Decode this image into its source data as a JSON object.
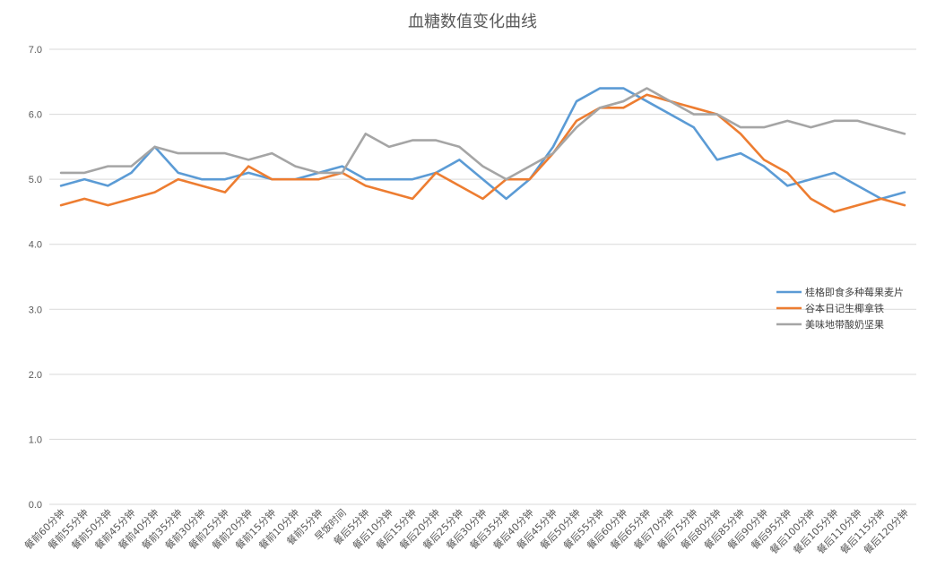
{
  "chart_data": {
    "type": "line",
    "title": "血糖数值变化曲线",
    "xlabel": "",
    "ylabel": "",
    "ylim": [
      0,
      7
    ],
    "yticks": [
      "0.0",
      "1.0",
      "2.0",
      "3.0",
      "4.0",
      "5.0",
      "6.0",
      "7.0"
    ],
    "grid": true,
    "legend_position": "right",
    "categories": [
      "餐前60分钟",
      "餐前55分钟",
      "餐前50分钟",
      "餐前45分钟",
      "餐前40分钟",
      "餐前35分钟",
      "餐前30分钟",
      "餐前25分钟",
      "餐前20分钟",
      "餐前15分钟",
      "餐前10分钟",
      "餐前5分钟",
      "早饭时间",
      "餐后5分钟",
      "餐后10分钟",
      "餐后15分钟",
      "餐后20分钟",
      "餐后25分钟",
      "餐后30分钟",
      "餐后35分钟",
      "餐后40分钟",
      "餐后45分钟",
      "餐后50分钟",
      "餐后55分钟",
      "餐后60分钟",
      "餐后65分钟",
      "餐后70分钟",
      "餐后75分钟",
      "餐后80分钟",
      "餐后85分钟",
      "餐后90分钟",
      "餐后95分钟",
      "餐后100分钟",
      "餐后105分钟",
      "餐后110分钟",
      "餐后115分钟",
      "餐后120分钟"
    ],
    "series": [
      {
        "name": "桂格即食多种莓果麦片",
        "color": "#5b9bd5",
        "values": [
          4.9,
          5.0,
          4.9,
          5.1,
          5.5,
          5.1,
          5.0,
          5.0,
          5.1,
          5.0,
          5.0,
          5.1,
          5.2,
          5.0,
          5.0,
          5.0,
          5.1,
          5.3,
          5.0,
          4.7,
          5.0,
          5.5,
          6.2,
          6.4,
          6.4,
          6.2,
          6.0,
          5.8,
          5.3,
          5.4,
          5.2,
          4.9,
          5.0,
          5.1,
          4.9,
          4.7,
          4.8
        ]
      },
      {
        "name": "谷本日记生椰拿铁",
        "color": "#ed7d31",
        "values": [
          4.6,
          4.7,
          4.6,
          4.7,
          4.8,
          5.0,
          4.9,
          4.8,
          5.2,
          5.0,
          5.0,
          5.0,
          5.1,
          4.9,
          4.8,
          4.7,
          5.1,
          4.9,
          4.7,
          5.0,
          5.0,
          5.4,
          5.9,
          6.1,
          6.1,
          6.3,
          6.2,
          6.1,
          6.0,
          5.7,
          5.3,
          5.1,
          4.7,
          4.5,
          4.6,
          4.7,
          4.6
        ]
      },
      {
        "name": "美味地带酸奶坚果",
        "color": "#a5a5a5",
        "values": [
          5.1,
          5.1,
          5.2,
          5.2,
          5.5,
          5.4,
          5.4,
          5.4,
          5.3,
          5.4,
          5.2,
          5.1,
          5.1,
          5.7,
          5.5,
          5.6,
          5.6,
          5.5,
          5.2,
          5.0,
          5.2,
          5.4,
          5.8,
          6.1,
          6.2,
          6.4,
          6.2,
          6.0,
          6.0,
          5.8,
          5.8,
          5.9,
          5.8,
          5.9,
          5.9,
          5.8,
          5.7
        ]
      }
    ]
  }
}
